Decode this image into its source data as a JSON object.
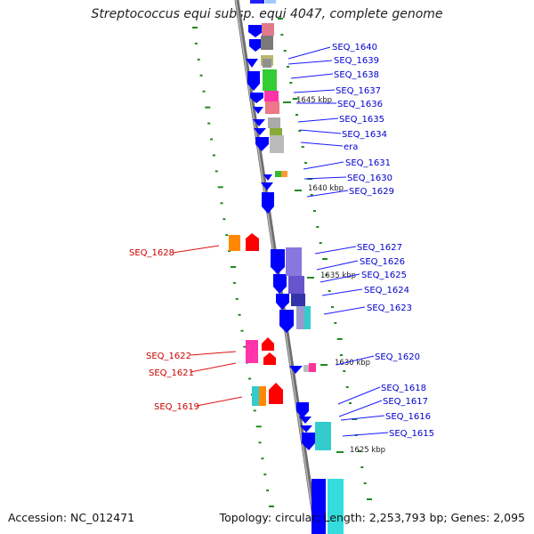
{
  "title": "Streptococcus equi subsp. equi 4047, complete genome",
  "footer": {
    "accession": "Accession: NC_012471",
    "topology": "Topology: circular; Length: 2,253,793 bp; Genes: 2,095"
  },
  "colors": {
    "forward_gene": "#0000ff",
    "reverse_gene": "#ff0000",
    "forward_label": "#0000cc",
    "reverse_label": "#cc0000",
    "backbone": "#8c8c8c",
    "tick": "#1f8a1f"
  },
  "ticks": [
    "1645 kbp",
    "1640 kbp",
    "1635 kbp",
    "1630 kbp",
    "1625 kbp"
  ],
  "forward_labels": [
    "SEQ_1640",
    "SEQ_1639",
    "SEQ_1638",
    "SEQ_1637",
    "SEQ_1636",
    "SEQ_1635",
    "SEQ_1634",
    "era",
    "SEQ_1631",
    "SEQ_1630",
    "SEQ_1629",
    "SEQ_1627",
    "SEQ_1626",
    "SEQ_1625",
    "SEQ_1624",
    "SEQ_1623",
    "SEQ_1620",
    "SEQ_1618",
    "SEQ_1617",
    "SEQ_1616",
    "SEQ_1615"
  ],
  "reverse_labels": [
    "SEQ_1628",
    "SEQ_1622",
    "SEQ_1621",
    "SEQ_1619"
  ]
}
